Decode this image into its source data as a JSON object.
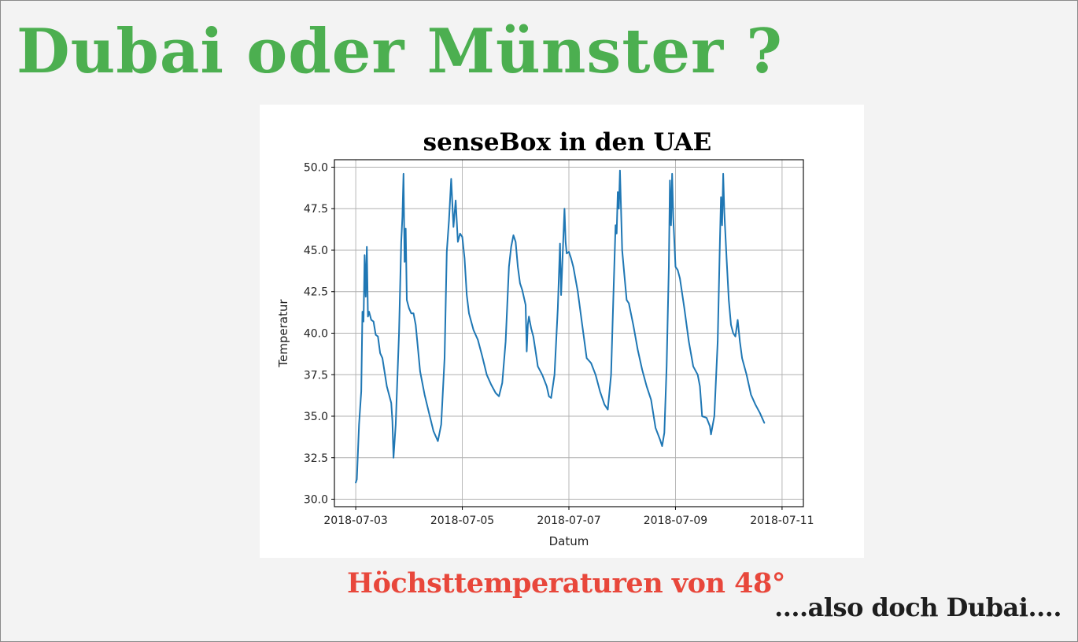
{
  "slide": {
    "title": "Dubai oder Münster ?",
    "caption": "Höchsttemperaturen von 48°",
    "conclusion": "....also doch Dubai...."
  },
  "colors": {
    "title": "#4caf50",
    "caption": "#e8473b",
    "line": "#1f77b4",
    "background": "#f3f3f3"
  },
  "chart_data": {
    "type": "line",
    "title": "senseBox in den UAE",
    "xlabel": "Datum",
    "ylabel": "Temperatur",
    "xlim": [
      "2018-07-03",
      "2018-07-11"
    ],
    "ylim": [
      30.0,
      50.0
    ],
    "x_ticks": [
      "2018-07-03",
      "2018-07-05",
      "2018-07-07",
      "2018-07-09",
      "2018-07-11"
    ],
    "y_ticks": [
      "30.0",
      "32.5",
      "35.0",
      "37.5",
      "40.0",
      "42.5",
      "45.0",
      "47.5",
      "50.0"
    ],
    "grid": true,
    "series": [
      {
        "color": "#1f77b4",
        "points": [
          [
            "2018-07-03T00:00",
            31.0
          ],
          [
            "2018-07-03T00:30",
            31.2
          ],
          [
            "2018-07-03T01:30",
            34.5
          ],
          [
            "2018-07-03T02:30",
            36.5
          ],
          [
            "2018-07-03T03:00",
            41.3
          ],
          [
            "2018-07-03T03:30",
            40.7
          ],
          [
            "2018-07-03T04:00",
            44.7
          ],
          [
            "2018-07-03T04:30",
            42.2
          ],
          [
            "2018-07-03T05:00",
            45.2
          ],
          [
            "2018-07-03T05:30",
            41.0
          ],
          [
            "2018-07-03T06:00",
            41.3
          ],
          [
            "2018-07-03T07:00",
            40.8
          ],
          [
            "2018-07-03T08:00",
            40.7
          ],
          [
            "2018-07-03T09:00",
            39.9
          ],
          [
            "2018-07-03T10:00",
            39.8
          ],
          [
            "2018-07-03T11:00",
            38.8
          ],
          [
            "2018-07-03T12:00",
            38.5
          ],
          [
            "2018-07-03T14:00",
            36.8
          ],
          [
            "2018-07-03T16:00",
            35.8
          ],
          [
            "2018-07-03T16:30",
            34.7
          ],
          [
            "2018-07-03T17:00",
            32.5
          ],
          [
            "2018-07-03T18:00",
            34.5
          ],
          [
            "2018-07-03T19:30",
            40.0
          ],
          [
            "2018-07-03T20:30",
            45.5
          ],
          [
            "2018-07-03T21:00",
            47.0
          ],
          [
            "2018-07-03T21:30",
            49.6
          ],
          [
            "2018-07-03T22:00",
            44.3
          ],
          [
            "2018-07-03T22:30",
            46.3
          ],
          [
            "2018-07-03T23:00",
            42.0
          ],
          [
            "2018-07-04T00:00",
            41.5
          ],
          [
            "2018-07-04T01:00",
            41.2
          ],
          [
            "2018-07-04T02:00",
            41.2
          ],
          [
            "2018-07-04T03:00",
            40.5
          ],
          [
            "2018-07-04T05:00",
            37.7
          ],
          [
            "2018-07-04T07:00",
            36.3
          ],
          [
            "2018-07-04T09:00",
            35.2
          ],
          [
            "2018-07-04T11:00",
            34.1
          ],
          [
            "2018-07-04T13:00",
            33.5
          ],
          [
            "2018-07-04T14:30",
            34.5
          ],
          [
            "2018-07-04T16:00",
            38.5
          ],
          [
            "2018-07-04T17:00",
            44.9
          ],
          [
            "2018-07-04T18:00",
            46.8
          ],
          [
            "2018-07-04T19:00",
            49.3
          ],
          [
            "2018-07-04T20:00",
            46.4
          ],
          [
            "2018-07-04T21:00",
            48.0
          ],
          [
            "2018-07-04T22:00",
            45.5
          ],
          [
            "2018-07-04T23:00",
            46.0
          ],
          [
            "2018-07-05T00:00",
            45.8
          ],
          [
            "2018-07-05T01:00",
            44.5
          ],
          [
            "2018-07-05T02:00",
            42.3
          ],
          [
            "2018-07-05T03:00",
            41.2
          ],
          [
            "2018-07-05T05:00",
            40.2
          ],
          [
            "2018-07-05T07:00",
            39.6
          ],
          [
            "2018-07-05T09:00",
            38.6
          ],
          [
            "2018-07-05T11:00",
            37.5
          ],
          [
            "2018-07-05T13:00",
            36.9
          ],
          [
            "2018-07-05T15:00",
            36.4
          ],
          [
            "2018-07-05T16:30",
            36.2
          ],
          [
            "2018-07-05T18:00",
            37.0
          ],
          [
            "2018-07-05T19:30",
            39.5
          ],
          [
            "2018-07-05T21:00",
            44.0
          ],
          [
            "2018-07-05T22:00",
            45.2
          ],
          [
            "2018-07-05T23:00",
            45.9
          ],
          [
            "2018-07-06T00:00",
            45.5
          ],
          [
            "2018-07-06T01:00",
            44.0
          ],
          [
            "2018-07-06T02:00",
            43.0
          ],
          [
            "2018-07-06T03:00",
            42.6
          ],
          [
            "2018-07-06T04:30",
            41.7
          ],
          [
            "2018-07-06T05:00",
            38.9
          ],
          [
            "2018-07-06T05:30",
            40.5
          ],
          [
            "2018-07-06T06:00",
            41.0
          ],
          [
            "2018-07-06T07:00",
            40.3
          ],
          [
            "2018-07-06T08:00",
            39.8
          ],
          [
            "2018-07-06T09:00",
            38.9
          ],
          [
            "2018-07-06T10:00",
            38.0
          ],
          [
            "2018-07-06T12:00",
            37.5
          ],
          [
            "2018-07-06T14:00",
            36.8
          ],
          [
            "2018-07-06T15:00",
            36.2
          ],
          [
            "2018-07-06T16:00",
            36.1
          ],
          [
            "2018-07-06T17:30",
            37.5
          ],
          [
            "2018-07-06T19:00",
            41.5
          ],
          [
            "2018-07-06T20:00",
            45.4
          ],
          [
            "2018-07-06T20:30",
            42.3
          ],
          [
            "2018-07-06T21:00",
            44.0
          ],
          [
            "2018-07-06T22:00",
            47.5
          ],
          [
            "2018-07-06T22:30",
            45.5
          ],
          [
            "2018-07-06T23:00",
            44.8
          ],
          [
            "2018-07-07T00:00",
            44.9
          ],
          [
            "2018-07-07T01:00",
            44.5
          ],
          [
            "2018-07-07T02:00",
            44.0
          ],
          [
            "2018-07-07T04:00",
            42.5
          ],
          [
            "2018-07-07T06:00",
            40.5
          ],
          [
            "2018-07-07T08:00",
            38.5
          ],
          [
            "2018-07-07T10:00",
            38.2
          ],
          [
            "2018-07-07T12:00",
            37.5
          ],
          [
            "2018-07-07T14:00",
            36.5
          ],
          [
            "2018-07-07T16:00",
            35.7
          ],
          [
            "2018-07-07T17:30",
            35.4
          ],
          [
            "2018-07-07T19:00",
            37.5
          ],
          [
            "2018-07-07T20:00",
            42.0
          ],
          [
            "2018-07-07T21:00",
            46.5
          ],
          [
            "2018-07-07T21:30",
            46.0
          ],
          [
            "2018-07-07T22:00",
            48.5
          ],
          [
            "2018-07-07T22:30",
            47.5
          ],
          [
            "2018-07-07T23:00",
            49.8
          ],
          [
            "2018-07-08T00:00",
            45.0
          ],
          [
            "2018-07-08T01:00",
            43.5
          ],
          [
            "2018-07-08T02:00",
            42.0
          ],
          [
            "2018-07-08T03:00",
            41.8
          ],
          [
            "2018-07-08T05:00",
            40.5
          ],
          [
            "2018-07-08T07:00",
            39.0
          ],
          [
            "2018-07-08T09:00",
            37.8
          ],
          [
            "2018-07-08T11:00",
            36.8
          ],
          [
            "2018-07-08T13:00",
            36.0
          ],
          [
            "2018-07-08T15:00",
            34.3
          ],
          [
            "2018-07-08T17:00",
            33.6
          ],
          [
            "2018-07-08T18:00",
            33.2
          ],
          [
            "2018-07-08T19:00",
            34.0
          ],
          [
            "2018-07-08T20:00",
            38.0
          ],
          [
            "2018-07-08T21:00",
            44.0
          ],
          [
            "2018-07-08T21:30",
            49.2
          ],
          [
            "2018-07-08T22:00",
            46.5
          ],
          [
            "2018-07-08T22:30",
            49.6
          ],
          [
            "2018-07-08T23:00",
            47.0
          ],
          [
            "2018-07-09T00:00",
            44.0
          ],
          [
            "2018-07-09T01:00",
            43.8
          ],
          [
            "2018-07-09T02:00",
            43.3
          ],
          [
            "2018-07-09T04:00",
            41.5
          ],
          [
            "2018-07-09T06:00",
            39.5
          ],
          [
            "2018-07-09T08:00",
            38.0
          ],
          [
            "2018-07-09T10:00",
            37.5
          ],
          [
            "2018-07-09T11:00",
            36.8
          ],
          [
            "2018-07-09T12:00",
            35.0
          ],
          [
            "2018-07-09T14:00",
            34.9
          ],
          [
            "2018-07-09T15:30",
            34.4
          ],
          [
            "2018-07-09T16:00",
            33.9
          ],
          [
            "2018-07-09T17:30",
            35.0
          ],
          [
            "2018-07-09T19:00",
            39.5
          ],
          [
            "2018-07-09T20:00",
            45.5
          ],
          [
            "2018-07-09T20:30",
            48.2
          ],
          [
            "2018-07-09T21:00",
            46.5
          ],
          [
            "2018-07-09T21:30",
            49.6
          ],
          [
            "2018-07-09T22:00",
            47.3
          ],
          [
            "2018-07-09T23:00",
            44.5
          ],
          [
            "2018-07-10T00:00",
            42.0
          ],
          [
            "2018-07-10T01:00",
            40.5
          ],
          [
            "2018-07-10T02:00",
            40.0
          ],
          [
            "2018-07-10T03:00",
            39.8
          ],
          [
            "2018-07-10T04:00",
            40.8
          ],
          [
            "2018-07-10T05:00",
            39.5
          ],
          [
            "2018-07-10T06:00",
            38.5
          ],
          [
            "2018-07-10T08:00",
            37.5
          ],
          [
            "2018-07-10T10:00",
            36.3
          ],
          [
            "2018-07-10T12:00",
            35.7
          ],
          [
            "2018-07-10T14:00",
            35.2
          ],
          [
            "2018-07-10T16:00",
            34.6
          ]
        ]
      }
    ]
  }
}
